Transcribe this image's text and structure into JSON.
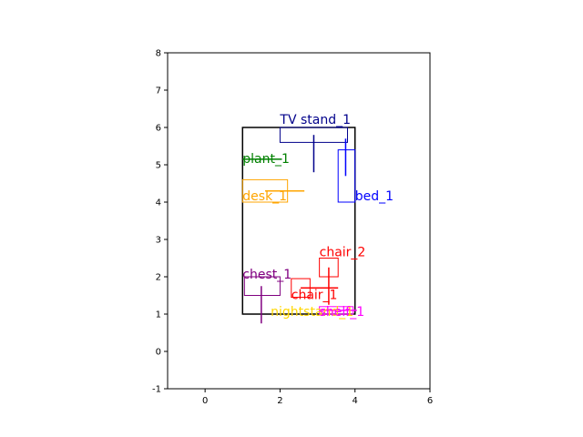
{
  "chart_data": {
    "type": "scatter",
    "title": "",
    "xlabel": "",
    "ylabel": "",
    "xlim": [
      -1,
      6
    ],
    "ylim": [
      -1,
      8
    ],
    "xticks": [
      0,
      2,
      4,
      6
    ],
    "yticks": [
      -1,
      0,
      1,
      2,
      3,
      4,
      5,
      6,
      7,
      8
    ],
    "grid": false,
    "room": {
      "x0": 1.0,
      "y0": 1.0,
      "x1": 4.0,
      "y1": 6.0,
      "color": "#000000"
    },
    "objects": [
      {
        "label": "TV stand_1",
        "color": "#00008b",
        "box": {
          "x0": 2.0,
          "y0": 5.6,
          "x1": 3.8,
          "y1": 6.0
        },
        "arrow": {
          "from": [
            2.9,
            5.8
          ],
          "to": [
            2.9,
            4.8
          ]
        },
        "label_pos": [
          2.0,
          6.1
        ]
      },
      {
        "label": "bed_1",
        "color": "#0000ff",
        "box": {
          "x0": 3.55,
          "y0": 4.0,
          "x1": 4.0,
          "y1": 5.4
        },
        "arrow": {
          "from": [
            3.75,
            5.7
          ],
          "to": [
            3.75,
            4.7
          ]
        },
        "label_pos": [
          4.0,
          4.05
        ]
      },
      {
        "label": "plant_1",
        "color": "#008000",
        "box": {
          "x0": 1.0,
          "y0": 5.1,
          "x1": 1.0,
          "y1": 5.1
        },
        "arrow": {
          "from": [
            1.0,
            5.15
          ],
          "to": [
            2.05,
            5.15
          ]
        },
        "label_pos": [
          1.0,
          5.05
        ]
      },
      {
        "label": "desk_1",
        "color": "#ffa500",
        "box": {
          "x0": 1.0,
          "y0": 4.6,
          "x1": 2.2,
          "y1": 4.0
        },
        "arrow": {
          "from": [
            1.6,
            4.3
          ],
          "to": [
            2.65,
            4.3
          ]
        },
        "label_pos": [
          1.0,
          4.05
        ]
      },
      {
        "label": "chair_2",
        "color": "#ff0000",
        "box": {
          "x0": 3.05,
          "y0": 2.5,
          "x1": 3.55,
          "y1": 2.0
        },
        "arrow": {
          "from": [
            3.3,
            2.25
          ],
          "to": [
            3.3,
            1.25
          ]
        },
        "label_pos": [
          3.05,
          2.55
        ]
      },
      {
        "label": "chair_1",
        "color": "#ff0000",
        "box": {
          "x0": 2.3,
          "y0": 1.95,
          "x1": 2.8,
          "y1": 1.45
        },
        "arrow": {
          "from": [
            2.55,
            1.7
          ],
          "to": [
            3.55,
            1.7
          ]
        },
        "label_pos": [
          2.3,
          1.4
        ]
      },
      {
        "label": "chest_1",
        "color": "#800080",
        "box": {
          "x0": 1.05,
          "y0": 2.0,
          "x1": 2.0,
          "y1": 1.5
        },
        "arrow": {
          "from": [
            1.5,
            1.75
          ],
          "to": [
            1.5,
            0.75
          ]
        },
        "label_pos": [
          1.0,
          1.95
        ]
      },
      {
        "label": "nightstand_1",
        "color": "#ffd700",
        "box": {
          "x0": 2.0,
          "y0": 1.5,
          "x1": 2.0,
          "y1": 1.0
        },
        "arrow": {
          "from": [
            2.0,
            1.25
          ],
          "to": [
            2.0,
            1.25
          ]
        },
        "label_pos": [
          1.75,
          0.95
        ]
      },
      {
        "label": "shelf_1",
        "color": "#ff00ff",
        "box": {
          "x0": 3.05,
          "y0": 1.2,
          "x1": 3.95,
          "y1": 1.0
        },
        "arrow": {
          "from": [
            3.05,
            1.1
          ],
          "to": [
            4.05,
            1.1
          ]
        },
        "label_pos": [
          3.05,
          0.95
        ]
      }
    ]
  }
}
